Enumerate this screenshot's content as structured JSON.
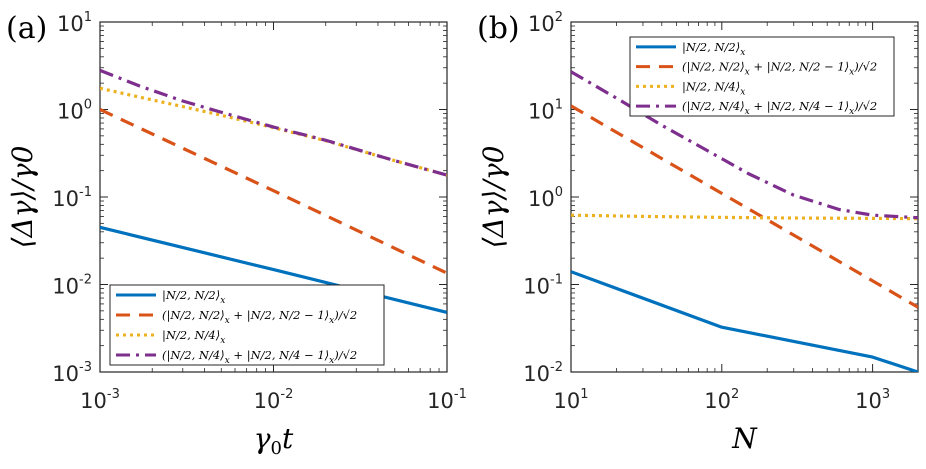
{
  "chart_data": [
    {
      "type": "line",
      "panel_label": "(a)",
      "xscale": "log",
      "yscale": "log",
      "xlabel": "γ0t",
      "xlabel_parts": [
        "γ",
        "0",
        "t"
      ],
      "ylabel": "⟨Δγ⟩/γ0",
      "xlim": [
        0.001,
        0.1
      ],
      "ylim": [
        0.001,
        10
      ],
      "x_ticks": [
        {
          "base": "10",
          "exp": "-3"
        },
        {
          "base": "10",
          "exp": "-2"
        },
        {
          "base": "10",
          "exp": "-1"
        }
      ],
      "y_ticks": [
        {
          "base": "10",
          "exp": "-3"
        },
        {
          "base": "10",
          "exp": "-2"
        },
        {
          "base": "10",
          "exp": "-1"
        },
        {
          "base": "10",
          "exp": "0"
        },
        {
          "base": "10",
          "exp": "1"
        }
      ],
      "x_tick_values": [
        0.001,
        0.01,
        0.1
      ],
      "y_tick_values": [
        0.001,
        0.01,
        0.1,
        1,
        10
      ],
      "legend_location": "bottom-right",
      "series": [
        {
          "name": "|N/2, N/2⟩x",
          "color": "#0072BD",
          "style": "solid",
          "x": [
            0.001,
            0.01,
            0.1
          ],
          "y": [
            0.045,
            0.0148,
            0.0048
          ]
        },
        {
          "name": "(|N/2, N/2⟩x + |N/2, N/2 − 1⟩x)/√2",
          "color": "#D95319",
          "style": "dashed",
          "x": [
            0.001,
            0.01,
            0.1
          ],
          "y": [
            1.0,
            0.118,
            0.0135
          ]
        },
        {
          "name": "|N/2, N/4⟩x",
          "color": "#EDB120",
          "style": "dotted",
          "x": [
            0.001,
            0.0017,
            0.003,
            0.005,
            0.01,
            0.02,
            0.05,
            0.1
          ],
          "y": [
            1.75,
            1.38,
            1.08,
            0.86,
            0.62,
            0.44,
            0.26,
            0.178
          ]
        },
        {
          "name": "(|N/2, N/4⟩x + |N/2, N/4 − 1⟩x)/√2",
          "color": "#7E2F8E",
          "style": "dashdot",
          "x": [
            0.001,
            0.0017,
            0.003,
            0.005,
            0.01,
            0.02,
            0.05,
            0.1
          ],
          "y": [
            2.8,
            1.85,
            1.25,
            0.93,
            0.63,
            0.445,
            0.26,
            0.178
          ]
        }
      ]
    },
    {
      "type": "line",
      "panel_label": "(b)",
      "xscale": "log",
      "yscale": "log",
      "xlabel": "N",
      "ylabel": "⟨Δγ⟩/γ0",
      "xlim": [
        10,
        2000
      ],
      "ylim": [
        0.01,
        100
      ],
      "x_ticks": [
        {
          "base": "10",
          "exp": "1"
        },
        {
          "base": "10",
          "exp": "2"
        },
        {
          "base": "10",
          "exp": "3"
        }
      ],
      "y_ticks": [
        {
          "base": "10",
          "exp": "-2"
        },
        {
          "base": "10",
          "exp": "-1"
        },
        {
          "base": "10",
          "exp": "0"
        },
        {
          "base": "10",
          "exp": "1"
        },
        {
          "base": "10",
          "exp": "2"
        }
      ],
      "x_tick_values": [
        10,
        100,
        1000
      ],
      "y_tick_values": [
        0.01,
        0.1,
        1,
        10,
        100
      ],
      "legend_location": "top-right",
      "series": [
        {
          "name": "|N/2, N/2⟩x",
          "color": "#0072BD",
          "style": "solid",
          "x": [
            10,
            100,
            1000,
            2000
          ],
          "y": [
            0.14,
            0.0325,
            0.0148,
            0.01
          ]
        },
        {
          "name": "(|N/2, N/2⟩x + |N/2, N/2 − 1⟩x)/√2",
          "color": "#D95319",
          "style": "dashed",
          "x": [
            10,
            100,
            1000,
            2000
          ],
          "y": [
            11.0,
            1.1,
            0.11,
            0.055
          ]
        },
        {
          "name": "|N/2, N/4⟩x",
          "color": "#EDB120",
          "style": "dotted",
          "x": [
            10,
            30,
            100,
            300,
            1000,
            2000
          ],
          "y": [
            0.62,
            0.6,
            0.585,
            0.575,
            0.57,
            0.565
          ]
        },
        {
          "name": "(|N/2, N/4⟩x + |N/2, N/4 − 1⟩x)/√2",
          "color": "#7E2F8E",
          "style": "dashdot",
          "x": [
            10,
            20,
            40,
            80,
            150,
            300,
            600,
            1000,
            2000
          ],
          "y": [
            27,
            13.5,
            6.6,
            3.4,
            1.85,
            1.05,
            0.72,
            0.62,
            0.58
          ]
        }
      ]
    }
  ]
}
